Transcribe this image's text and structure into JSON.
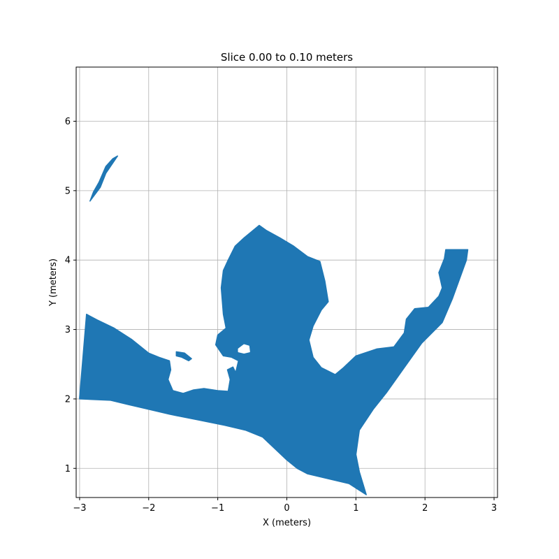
{
  "chart_data": {
    "type": "scatter",
    "title": "Slice 0.00 to 0.10 meters",
    "xlabel": "X (meters)",
    "ylabel": "Y (meters)",
    "xlim": [
      -3.05,
      3.05
    ],
    "ylim": [
      0.58,
      6.78
    ],
    "xticks": [
      -3,
      -2,
      -1,
      0,
      1,
      2,
      3
    ],
    "yticks": [
      1,
      2,
      3,
      4,
      5,
      6
    ],
    "grid": true,
    "legend": "none",
    "color": "#1f77b4",
    "series": [
      {
        "region": "main",
        "points": [
          [
            -3.0,
            2.02
          ],
          [
            -2.9,
            3.22
          ],
          [
            -2.75,
            3.14
          ],
          [
            -2.5,
            3.02
          ],
          [
            -2.25,
            2.86
          ],
          [
            -2.0,
            2.66
          ],
          [
            -1.85,
            2.6
          ],
          [
            -1.7,
            2.55
          ],
          [
            -1.68,
            2.42
          ],
          [
            -1.72,
            2.28
          ],
          [
            -1.65,
            2.12
          ],
          [
            -1.5,
            2.08
          ],
          [
            -1.35,
            2.13
          ],
          [
            -1.2,
            2.15
          ],
          [
            -1.0,
            2.12
          ],
          [
            -0.85,
            2.11
          ],
          [
            -0.82,
            2.28
          ],
          [
            -0.86,
            2.42
          ],
          [
            -0.78,
            2.46
          ],
          [
            -0.74,
            2.38
          ],
          [
            -0.7,
            2.55
          ],
          [
            -0.8,
            2.6
          ],
          [
            -0.92,
            2.62
          ],
          [
            -1.03,
            2.78
          ],
          [
            -1.0,
            2.92
          ],
          [
            -0.88,
            3.02
          ],
          [
            -0.92,
            3.22
          ],
          [
            -0.95,
            3.6
          ],
          [
            -0.92,
            3.85
          ],
          [
            -0.85,
            4.0
          ],
          [
            -0.75,
            4.2
          ],
          [
            -0.62,
            4.32
          ],
          [
            -0.4,
            4.5
          ],
          [
            -0.3,
            4.43
          ],
          [
            -0.1,
            4.32
          ],
          [
            0.1,
            4.2
          ],
          [
            0.3,
            4.05
          ],
          [
            0.48,
            3.98
          ],
          [
            0.55,
            3.7
          ],
          [
            0.6,
            3.4
          ],
          [
            0.5,
            3.28
          ],
          [
            0.38,
            3.05
          ],
          [
            0.32,
            2.85
          ],
          [
            0.38,
            2.6
          ],
          [
            0.5,
            2.45
          ],
          [
            0.7,
            2.35
          ],
          [
            0.82,
            2.45
          ],
          [
            1.0,
            2.62
          ],
          [
            1.3,
            2.72
          ],
          [
            1.55,
            2.75
          ],
          [
            1.7,
            2.95
          ],
          [
            1.73,
            3.15
          ],
          [
            1.85,
            3.3
          ],
          [
            2.05,
            3.32
          ],
          [
            2.2,
            3.48
          ],
          [
            2.25,
            3.6
          ],
          [
            2.2,
            3.82
          ],
          [
            2.28,
            4.02
          ],
          [
            2.3,
            4.15
          ],
          [
            2.62,
            4.15
          ],
          [
            2.6,
            4.0
          ],
          [
            2.4,
            3.45
          ],
          [
            2.25,
            3.1
          ],
          [
            1.95,
            2.8
          ],
          [
            1.7,
            2.45
          ],
          [
            1.45,
            2.1
          ],
          [
            1.25,
            1.85
          ],
          [
            1.05,
            1.55
          ],
          [
            1.0,
            1.2
          ],
          [
            1.05,
            0.95
          ],
          [
            1.15,
            0.62
          ],
          [
            0.9,
            0.78
          ],
          [
            0.6,
            0.85
          ],
          [
            0.3,
            0.92
          ],
          [
            0.15,
            1.0
          ],
          [
            0.0,
            1.12
          ],
          [
            -0.35,
            1.45
          ],
          [
            -0.6,
            1.55
          ],
          [
            -0.9,
            1.62
          ],
          [
            -1.3,
            1.7
          ],
          [
            -1.7,
            1.78
          ],
          [
            -2.0,
            1.85
          ],
          [
            -2.3,
            1.92
          ],
          [
            -2.55,
            1.98
          ],
          [
            -3.0,
            2.0
          ]
        ]
      },
      {
        "region": "hole",
        "points": [
          [
            -0.7,
            2.72
          ],
          [
            -0.62,
            2.78
          ],
          [
            -0.55,
            2.76
          ],
          [
            -0.54,
            2.68
          ],
          [
            -0.62,
            2.66
          ],
          [
            -0.7,
            2.68
          ]
        ]
      },
      {
        "region": "spur",
        "points": [
          [
            -1.6,
            2.68
          ],
          [
            -1.48,
            2.66
          ],
          [
            -1.38,
            2.58
          ],
          [
            -1.42,
            2.55
          ],
          [
            -1.52,
            2.6
          ],
          [
            -1.6,
            2.62
          ]
        ]
      },
      {
        "region": "island",
        "points": [
          [
            -2.85,
            4.85
          ],
          [
            -2.7,
            5.05
          ],
          [
            -2.62,
            5.25
          ],
          [
            -2.45,
            5.5
          ],
          [
            -2.52,
            5.46
          ],
          [
            -2.62,
            5.35
          ],
          [
            -2.72,
            5.12
          ],
          [
            -2.8,
            4.98
          ]
        ]
      }
    ]
  }
}
